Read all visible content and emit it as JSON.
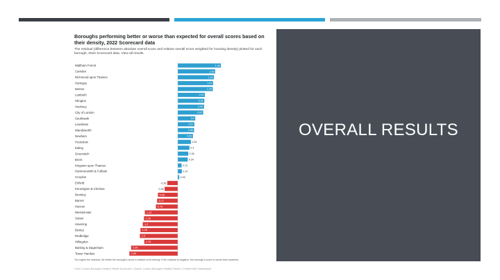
{
  "slide": {
    "panel_title": "OVERALL RESULTS",
    "strip_colors": [
      "#3b3f46",
      "#2aa4d8",
      "#aeb1b5"
    ],
    "panel_color": "#474c55"
  },
  "chart_data": {
    "type": "bar",
    "orientation": "horizontal",
    "title": "Boroughs performing better or worse than expected for overall scores based on their density, 2022 Scorecard data",
    "subtitle": "The residual (difference between absolute overall score and relative overall score weighted for housing density) plotted for each borough, 2022 Scorecard data. View all results.",
    "note": "The higher the residual, the better the borough's score is relative to its density. If the residual is negative, the borough's score is worse than expected.",
    "source": "Chart: London Boroughs Healthy Streets Scorecard • Source: London Boroughs Healthy Streets • Created with Datawrapper",
    "positive_color": "#2f9fd0",
    "negative_color": "#d93a3a",
    "xlim": [
      -1.66,
      1.48
    ],
    "categories": [
      "Waltham Forest",
      "Camden",
      "Richmond upon Thames",
      "Haringey",
      "Merton",
      "Lambeth",
      "Islington",
      "Hackney",
      "City of London",
      "Southwark",
      "Lewisham",
      "Wandsworth",
      "Newham",
      "Hounslow",
      "Ealing",
      "Greenwich",
      "Brent",
      "Kingston upon Thames",
      "Hammersmith & Fulham",
      "Croydon",
      "Enfield",
      "Kensington & Chelsea",
      "Bromley",
      "Barnet",
      "Harrow",
      "Westminster",
      "Sutton",
      "Havering",
      "Bexley",
      "Redbridge",
      "Hillingdon",
      "Barking & Dagenham",
      "Tower Hamlets"
    ],
    "values": [
      1.48,
      1.28,
      1.24,
      1.21,
      1.2,
      0.93,
      0.91,
      0.9,
      0.87,
      0.6,
      0.57,
      0.56,
      0.52,
      0.45,
      0.4,
      0.36,
      0.34,
      0.13,
      0.14,
      0.05,
      -0.36,
      -0.45,
      -0.68,
      -0.71,
      -0.75,
      -1.13,
      -1.16,
      -1.2,
      -1.28,
      -1.3,
      -1.15,
      -1.6,
      -1.66
    ],
    "value_labels": [
      "1.48",
      "1.28",
      "1.24",
      "1.21",
      "1.20",
      "0.93",
      "0.91",
      "0.90",
      "0.87",
      "0.6",
      "0.57",
      "0.56",
      "0.52",
      "0.45",
      "0.4",
      "0.36",
      "0.34",
      "0.13",
      "0.14",
      "0.05",
      "-0.36",
      "-0.45",
      "-0.68",
      "-0.71",
      "-0.75",
      "-1.13",
      "-1.16",
      "-1.2",
      "-1.28",
      "-1.3",
      "-1.15",
      "-1.60",
      "-1.66"
    ]
  }
}
